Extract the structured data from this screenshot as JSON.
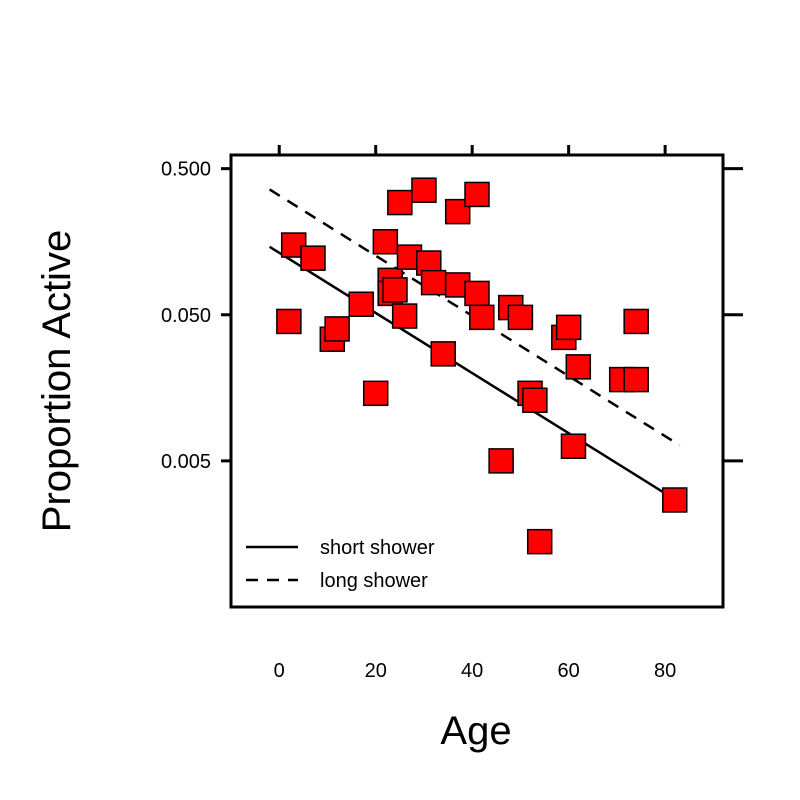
{
  "chart_data": {
    "type": "scatter",
    "title": "",
    "xlabel": "Age",
    "ylabel": "Proportion Active",
    "xlim": [
      -10,
      92
    ],
    "ylim": [
      0.0005,
      0.62
    ],
    "y_scale": "log10",
    "x_ticks": [
      0,
      20,
      40,
      60,
      80
    ],
    "x_tick_labels": [
      "0",
      "20",
      "40",
      "60",
      "80"
    ],
    "y_ticks": [
      0.5,
      0.05,
      0.005
    ],
    "y_tick_labels": [
      "0.500",
      "0.050",
      "0.005"
    ],
    "grid": false,
    "legend_position": "bottom-left",
    "marker_color": "#ff0000",
    "series": [
      {
        "values": [
          [
            2,
            0.045
          ],
          [
            3,
            0.15
          ],
          [
            7,
            0.122
          ],
          [
            11,
            0.034
          ],
          [
            12,
            0.04
          ],
          [
            17,
            0.059
          ],
          [
            20,
            0.0145
          ],
          [
            22,
            0.158
          ],
          [
            23,
            0.086
          ],
          [
            23,
            0.07
          ],
          [
            24,
            0.074
          ],
          [
            25,
            0.293
          ],
          [
            26,
            0.049
          ],
          [
            27,
            0.124
          ],
          [
            30,
            0.356
          ],
          [
            31,
            0.113
          ],
          [
            32,
            0.083
          ],
          [
            34,
            0.027
          ],
          [
            37,
            0.254
          ],
          [
            37,
            0.08
          ],
          [
            41,
            0.07
          ],
          [
            41,
            0.333
          ],
          [
            42,
            0.048
          ],
          [
            46,
            0.005
          ],
          [
            48,
            0.056
          ],
          [
            50,
            0.048
          ],
          [
            52,
            0.0145
          ],
          [
            53,
            0.013
          ],
          [
            59,
            0.035
          ],
          [
            60,
            0.041
          ],
          [
            61,
            0.0063
          ],
          [
            62,
            0.022
          ],
          [
            71,
            0.018
          ],
          [
            74,
            0.045
          ],
          [
            74,
            0.018
          ],
          [
            82,
            0.0027
          ],
          [
            54,
            0.0014
          ]
        ]
      }
    ],
    "lines": [
      {
        "name": "short shower",
        "style": "solid",
        "points": [
          [
            -2,
            0.146
          ],
          [
            83,
            0.0026
          ]
        ]
      },
      {
        "name": "long shower",
        "style": "dashed",
        "points": [
          [
            -2,
            0.36
          ],
          [
            83,
            0.0064
          ]
        ]
      }
    ]
  }
}
